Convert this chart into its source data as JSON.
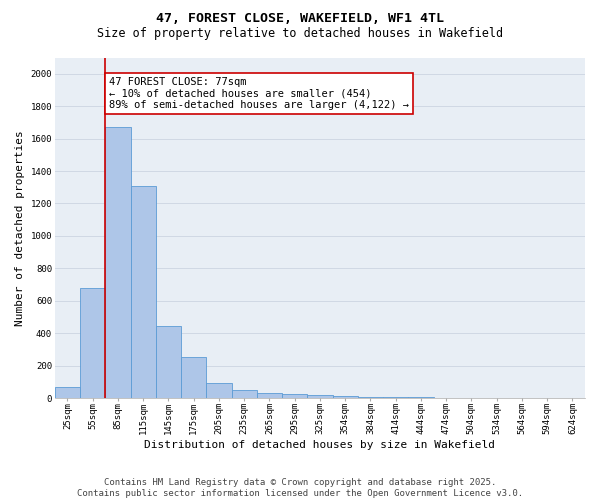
{
  "title": "47, FOREST CLOSE, WAKEFIELD, WF1 4TL",
  "subtitle": "Size of property relative to detached houses in Wakefield",
  "xlabel": "Distribution of detached houses by size in Wakefield",
  "ylabel": "Number of detached properties",
  "categories": [
    "25sqm",
    "55sqm",
    "85sqm",
    "115sqm",
    "145sqm",
    "175sqm",
    "205sqm",
    "235sqm",
    "265sqm",
    "295sqm",
    "325sqm",
    "354sqm",
    "384sqm",
    "414sqm",
    "444sqm",
    "474sqm",
    "504sqm",
    "534sqm",
    "564sqm",
    "594sqm",
    "624sqm"
  ],
  "values": [
    70,
    680,
    1670,
    1310,
    445,
    255,
    95,
    50,
    30,
    22,
    18,
    10,
    8,
    5,
    4,
    3,
    3,
    2,
    2,
    2,
    2
  ],
  "bar_color": "#aec6e8",
  "bar_edge_color": "#5b9bd5",
  "ylim": [
    0,
    2100
  ],
  "yticks": [
    0,
    200,
    400,
    600,
    800,
    1000,
    1200,
    1400,
    1600,
    1800,
    2000
  ],
  "red_line_x": 1.5,
  "annotation_text": "47 FOREST CLOSE: 77sqm\n← 10% of detached houses are smaller (454)\n89% of semi-detached houses are larger (4,122) →",
  "annotation_box_color": "white",
  "annotation_box_edge_color": "#cc0000",
  "red_line_color": "#cc0000",
  "background_color": "#e8eef5",
  "grid_color": "#d0d8e4",
  "footer_line1": "Contains HM Land Registry data © Crown copyright and database right 2025.",
  "footer_line2": "Contains public sector information licensed under the Open Government Licence v3.0.",
  "title_fontsize": 9.5,
  "subtitle_fontsize": 8.5,
  "xlabel_fontsize": 8,
  "ylabel_fontsize": 8,
  "tick_fontsize": 6.5,
  "annotation_fontsize": 7.5,
  "footer_fontsize": 6.5
}
